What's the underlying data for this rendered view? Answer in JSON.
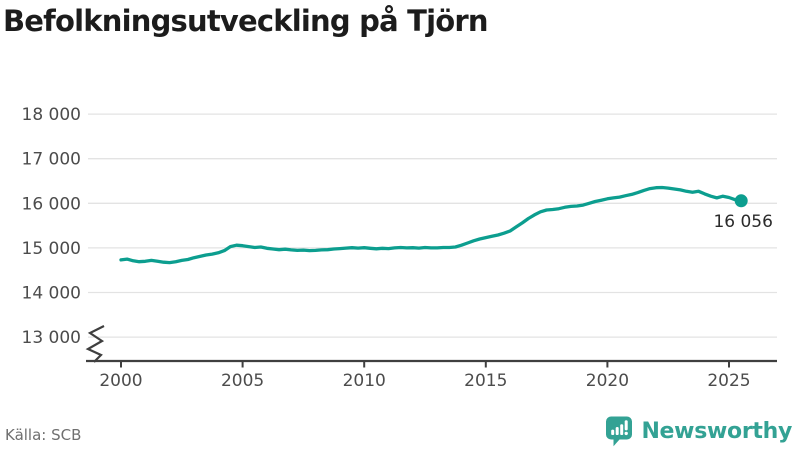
{
  "header": {
    "title": "Befolkningsutveckling på Tjörn"
  },
  "footer": {
    "source": "Källa: SCB",
    "logo_text": "Newsworthy"
  },
  "icons": {
    "logo_icon": "newsworthy-bar-chart-speech-bubble"
  },
  "colors": {
    "accent_line": "#0c9e8f",
    "accent_logo": "#33a294",
    "grid": "#e3e3e3",
    "axis": "#3f3f3f",
    "title_text": "#1c1c1c",
    "axis_text": "#4c4c4c",
    "muted_text": "#6f6f6f"
  },
  "chart_data": {
    "type": "line",
    "title": "Befolkningsutveckling på Tjörn",
    "xlabel": "",
    "ylabel": "",
    "grid": "horizontal",
    "legend": "none",
    "y_axis_break": true,
    "x_start": 2000.0,
    "x_step": 0.25,
    "x_ticks": [
      2000,
      2005,
      2010,
      2015,
      2020,
      2025
    ],
    "x_tick_labels": [
      "2000",
      "2005",
      "2010",
      "2015",
      "2020",
      "2025"
    ],
    "y_ticks": [
      13000,
      14000,
      15000,
      16000,
      17000,
      18000
    ],
    "y_tick_labels": [
      "13 000",
      "14 000",
      "15 000",
      "16 000",
      "17 000",
      "18 000"
    ],
    "xlim": [
      1999.6,
      2027.0
    ],
    "ylim_visible": [
      13000,
      18000
    ],
    "end_point_value": 16056,
    "end_point_label": "16 056",
    "series": [
      {
        "name": "Befolkning",
        "values": [
          14730,
          14750,
          14710,
          14690,
          14700,
          14720,
          14700,
          14680,
          14670,
          14690,
          14720,
          14740,
          14780,
          14810,
          14840,
          14860,
          14890,
          14940,
          15030,
          15060,
          15050,
          15030,
          15010,
          15020,
          14990,
          14975,
          14960,
          14970,
          14955,
          14945,
          14950,
          14940,
          14945,
          14955,
          14960,
          14975,
          14985,
          14995,
          15005,
          14995,
          15005,
          14990,
          14980,
          14990,
          14985,
          15000,
          15010,
          15000,
          15005,
          14995,
          15010,
          15000,
          15000,
          15010,
          15010,
          15020,
          15060,
          15110,
          15160,
          15200,
          15230,
          15260,
          15290,
          15330,
          15380,
          15470,
          15560,
          15660,
          15740,
          15810,
          15850,
          15860,
          15880,
          15910,
          15930,
          15940,
          15960,
          16000,
          16040,
          16070,
          16100,
          16120,
          16140,
          16170,
          16200,
          16240,
          16290,
          16330,
          16350,
          16355,
          16340,
          16320,
          16300,
          16270,
          16250,
          16270,
          16210,
          16160,
          16120,
          16160,
          16130,
          16080,
          16056
        ]
      }
    ]
  }
}
